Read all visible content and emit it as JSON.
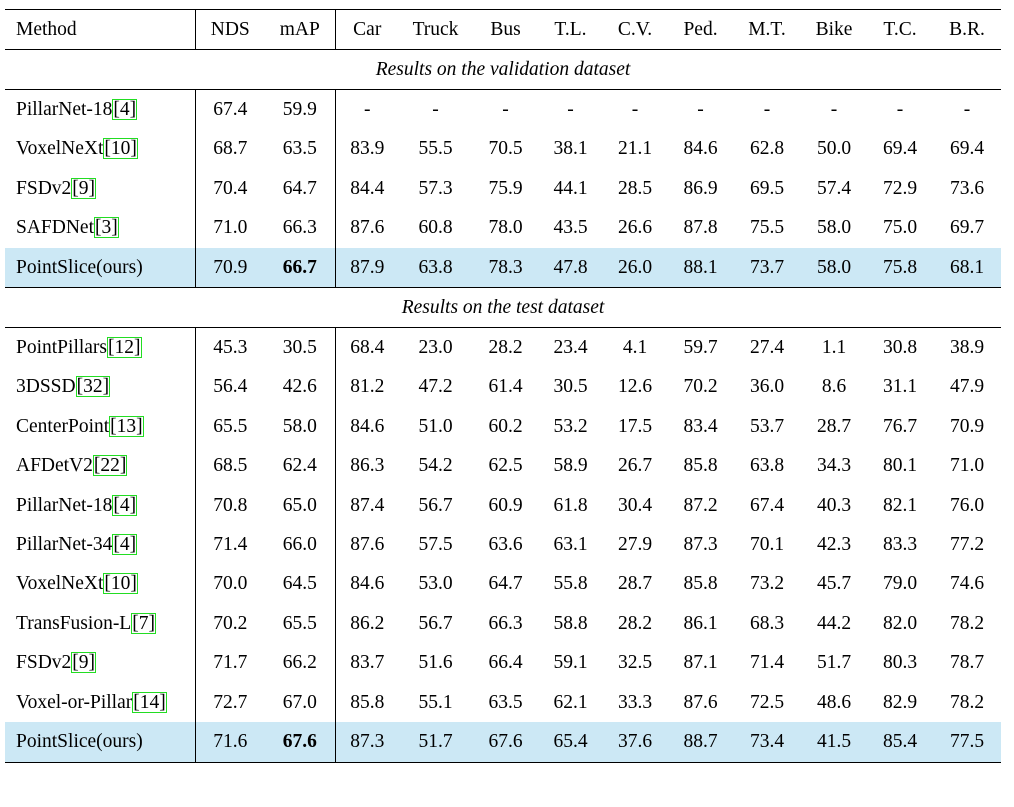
{
  "header": {
    "columns": [
      "Method",
      "NDS",
      "mAP",
      "Car",
      "Truck",
      "Bus",
      "T.L.",
      "C.V.",
      "Ped.",
      "M.T.",
      "Bike",
      "T.C.",
      "B.R."
    ]
  },
  "validation": {
    "title": "Results on the validation dataset",
    "rows": [
      {
        "method": "PillarNet-18",
        "ref": "4",
        "values": [
          "67.4",
          "59.9",
          "-",
          "-",
          "-",
          "-",
          "-",
          "-",
          "-",
          "-",
          "-",
          "-"
        ]
      },
      {
        "method": "VoxelNeXt",
        "ref": "10",
        "values": [
          "68.7",
          "63.5",
          "83.9",
          "55.5",
          "70.5",
          "38.1",
          "21.1",
          "84.6",
          "62.8",
          "50.0",
          "69.4",
          "69.4"
        ]
      },
      {
        "method": "FSDv2",
        "ref": "9",
        "values": [
          "70.4",
          "64.7",
          "84.4",
          "57.3",
          "75.9",
          "44.1",
          "28.5",
          "86.9",
          "69.5",
          "57.4",
          "72.9",
          "73.6"
        ]
      },
      {
        "method": "SAFDNet",
        "ref": "3",
        "values": [
          "71.0",
          "66.3",
          "87.6",
          "60.8",
          "78.0",
          "43.5",
          "26.6",
          "87.8",
          "75.5",
          "58.0",
          "75.0",
          "69.7"
        ]
      },
      {
        "method": "PointSlice(ours)",
        "ref": "",
        "values": [
          "70.9",
          "66.7",
          "87.9",
          "63.8",
          "78.3",
          "47.8",
          "26.0",
          "88.1",
          "73.7",
          "58.0",
          "75.8",
          "68.1"
        ]
      }
    ]
  },
  "test": {
    "title": "Results on the test dataset",
    "rows": [
      {
        "method": "PointPillars",
        "ref": "12",
        "values": [
          "45.3",
          "30.5",
          "68.4",
          "23.0",
          "28.2",
          "23.4",
          "4.1",
          "59.7",
          "27.4",
          "1.1",
          "30.8",
          "38.9"
        ]
      },
      {
        "method": "3DSSD",
        "ref": "32",
        "values": [
          "56.4",
          "42.6",
          "81.2",
          "47.2",
          "61.4",
          "30.5",
          "12.6",
          "70.2",
          "36.0",
          "8.6",
          "31.1",
          "47.9"
        ]
      },
      {
        "method": "CenterPoint",
        "ref": "13",
        "values": [
          "65.5",
          "58.0",
          "84.6",
          "51.0",
          "60.2",
          "53.2",
          "17.5",
          "83.4",
          "53.7",
          "28.7",
          "76.7",
          "70.9"
        ]
      },
      {
        "method": "AFDetV2",
        "ref": "22",
        "values": [
          "68.5",
          "62.4",
          "86.3",
          "54.2",
          "62.5",
          "58.9",
          "26.7",
          "85.8",
          "63.8",
          "34.3",
          "80.1",
          "71.0"
        ]
      },
      {
        "method": "PillarNet-18",
        "ref": "4",
        "values": [
          "70.8",
          "65.0",
          "87.4",
          "56.7",
          "60.9",
          "61.8",
          "30.4",
          "87.2",
          "67.4",
          "40.3",
          "82.1",
          "76.0"
        ]
      },
      {
        "method": "PillarNet-34",
        "ref": "4",
        "values": [
          "71.4",
          "66.0",
          "87.6",
          "57.5",
          "63.6",
          "63.1",
          "27.9",
          "87.3",
          "70.1",
          "42.3",
          "83.3",
          "77.2"
        ]
      },
      {
        "method": "VoxelNeXt",
        "ref": "10",
        "values": [
          "70.0",
          "64.5",
          "84.6",
          "53.0",
          "64.7",
          "55.8",
          "28.7",
          "85.8",
          "73.2",
          "45.7",
          "79.0",
          "74.6"
        ]
      },
      {
        "method": "TransFusion-L",
        "ref": "7",
        "values": [
          "70.2",
          "65.5",
          "86.2",
          "56.7",
          "66.3",
          "58.8",
          "28.2",
          "86.1",
          "68.3",
          "44.2",
          "82.0",
          "78.2"
        ]
      },
      {
        "method": "FSDv2",
        "ref": "9",
        "values": [
          "71.7",
          "66.2",
          "83.7",
          "51.6",
          "66.4",
          "59.1",
          "32.5",
          "87.1",
          "71.4",
          "51.7",
          "80.3",
          "78.7"
        ]
      },
      {
        "method": "Voxel-or-Pillar",
        "ref": "14",
        "values": [
          "72.7",
          "67.0",
          "85.8",
          "55.1",
          "63.5",
          "62.1",
          "33.3",
          "87.6",
          "72.5",
          "48.6",
          "82.9",
          "78.2"
        ]
      },
      {
        "method": "PointSlice(ours)",
        "ref": "",
        "values": [
          "71.6",
          "67.6",
          "87.3",
          "51.7",
          "67.6",
          "65.4",
          "37.6",
          "88.7",
          "73.4",
          "41.5",
          "85.4",
          "77.5"
        ]
      }
    ]
  },
  "highlight": {
    "row_color": "#cce8f5",
    "ref_box_color": "#22dd22",
    "bold_cell": "mAP of PointSlice(ours)"
  }
}
